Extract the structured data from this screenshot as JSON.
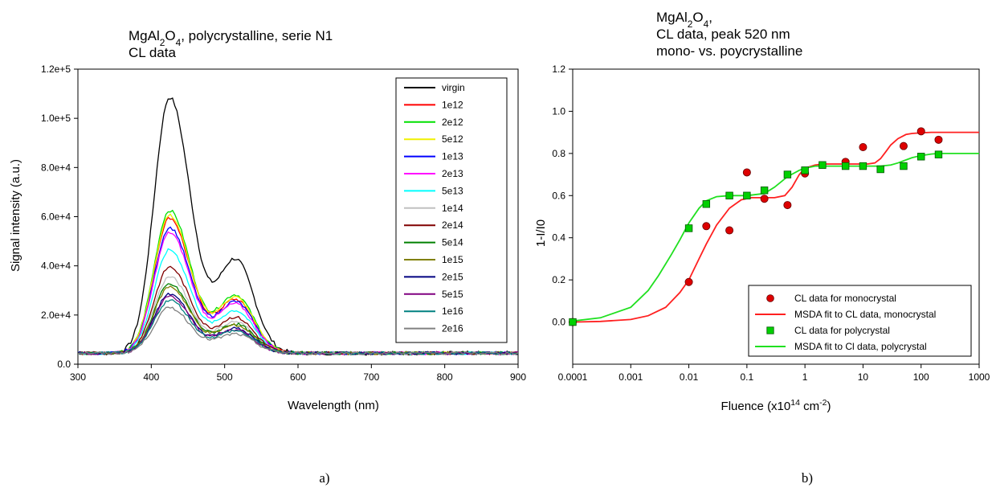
{
  "panels": {
    "left_label": "a)",
    "right_label": "b)"
  },
  "chart_data": [
    {
      "type": "line",
      "title_parts": [
        [
          {
            "t": "MgAl"
          },
          {
            "t": "2",
            "sub": true
          },
          {
            "t": "O"
          },
          {
            "t": "4",
            "sub": true
          },
          {
            "t": ", polycrystalline, serie N1"
          }
        ],
        [
          {
            "t": "CL data"
          }
        ]
      ],
      "xlabel": "Wavelength (nm)",
      "ylabel": "Signal intensity (a.u.)",
      "xlim": [
        300,
        900
      ],
      "ylim": [
        0,
        120000
      ],
      "xticks": [
        300,
        400,
        500,
        600,
        700,
        800,
        900
      ],
      "yticks": [
        0,
        20000,
        40000,
        60000,
        80000,
        100000,
        120000
      ],
      "ytick_labels": [
        "0.0",
        "2.0e+4",
        "4.0e+4",
        "6.0e+4",
        "8.0e+4",
        "1.0e+5",
        "1.2e+5"
      ],
      "grid": false,
      "legend_position": "top-right",
      "series": [
        {
          "name": "virgin",
          "color": "#000000",
          "peak": 104000,
          "shoulder": 42000
        },
        {
          "name": "1e12",
          "color": "#ff0000",
          "peak": 55000,
          "shoulder": 24000
        },
        {
          "name": "2e12",
          "color": "#00e000",
          "peak": 58000,
          "shoulder": 26000
        },
        {
          "name": "5e12",
          "color": "#f0f000",
          "peak": 56000,
          "shoulder": 25000
        },
        {
          "name": "1e13",
          "color": "#0000ff",
          "peak": 51000,
          "shoulder": 23000
        },
        {
          "name": "2e13",
          "color": "#ff00ff",
          "peak": 49000,
          "shoulder": 22000
        },
        {
          "name": "5e13",
          "color": "#00ffff",
          "peak": 42000,
          "shoulder": 19000
        },
        {
          "name": "1e14",
          "color": "#c0c0c0",
          "peak": 31000,
          "shoulder": 14000
        },
        {
          "name": "2e14",
          "color": "#800000",
          "peak": 35000,
          "shoulder": 16000
        },
        {
          "name": "5e14",
          "color": "#008000",
          "peak": 28000,
          "shoulder": 13000
        },
        {
          "name": "1e15",
          "color": "#808000",
          "peak": 27000,
          "shoulder": 12500
        },
        {
          "name": "2e15",
          "color": "#000080",
          "peak": 24000,
          "shoulder": 11000
        },
        {
          "name": "5e15",
          "color": "#800080",
          "peak": 23000,
          "shoulder": 10500
        },
        {
          "name": "1e16",
          "color": "#008080",
          "peak": 21500,
          "shoulder": 10000
        },
        {
          "name": "2e16",
          "color": "#808080",
          "peak": 18500,
          "shoulder": 8500
        }
      ]
    },
    {
      "type": "scatter",
      "title_parts": [
        [
          {
            "t": "MgAl"
          },
          {
            "t": "2",
            "sub": true
          },
          {
            "t": "O"
          },
          {
            "t": "4",
            "sub": true
          },
          {
            "t": ","
          }
        ],
        [
          {
            "t": "CL data, peak 520 nm"
          }
        ],
        [
          {
            "t": "mono- vs. poycrystalline"
          }
        ]
      ],
      "xlabel_parts": [
        {
          "t": "Fluence (x10"
        },
        {
          "t": "14",
          "sup": true
        },
        {
          "t": " cm"
        },
        {
          "t": "-2",
          "sup": true
        },
        {
          "t": ")"
        }
      ],
      "ylabel": "1-I/I0",
      "xscale": "log",
      "xlim": [
        0.0001,
        1000
      ],
      "ylim": [
        -0.2,
        1.2
      ],
      "xticks": [
        0.0001,
        0.001,
        0.01,
        0.1,
        1,
        10,
        100,
        1000
      ],
      "xtick_labels": [
        "0.0001",
        "0.001",
        "0.01",
        "0.1",
        "1",
        "10",
        "100",
        "1000"
      ],
      "yticks": [
        0.0,
        0.2,
        0.4,
        0.6,
        0.8,
        1.0,
        1.2
      ],
      "ytick_labels": [
        "0.0",
        "0.2",
        "0.4",
        "0.6",
        "0.8",
        "1.0",
        "1.2"
      ],
      "grid": false,
      "legend_position": "bottom-right",
      "series": [
        {
          "name": "CL data for monocrystal",
          "kind": "points",
          "marker": "circle",
          "color": "#dd0000",
          "x": [
            0.0001,
            0.01,
            0.02,
            0.05,
            0.1,
            0.2,
            0.5,
            1,
            5,
            10,
            50,
            100,
            200
          ],
          "y": [
            0.0,
            0.19,
            0.455,
            0.435,
            0.71,
            0.585,
            0.555,
            0.705,
            0.76,
            0.83,
            0.835,
            0.905,
            0.865
          ]
        },
        {
          "name": "MSDA fit to CL data, monocrystal",
          "kind": "line",
          "color": "#ff2020",
          "x": [
            0.0001,
            0.0003,
            0.001,
            0.002,
            0.004,
            0.007,
            0.01,
            0.015,
            0.02,
            0.03,
            0.05,
            0.08,
            0.12,
            0.2,
            0.3,
            0.45,
            0.6,
            0.8,
            1,
            1.5,
            2,
            3,
            5,
            8,
            12,
            16,
            20,
            25,
            30,
            40,
            55,
            70,
            100,
            150,
            200,
            300,
            1000
          ],
          "y": [
            0.0,
            0.003,
            0.012,
            0.03,
            0.07,
            0.14,
            0.2,
            0.3,
            0.37,
            0.46,
            0.54,
            0.58,
            0.59,
            0.59,
            0.59,
            0.6,
            0.64,
            0.7,
            0.73,
            0.745,
            0.75,
            0.75,
            0.75,
            0.75,
            0.75,
            0.755,
            0.775,
            0.81,
            0.84,
            0.87,
            0.89,
            0.895,
            0.898,
            0.9,
            0.9,
            0.9,
            0.9
          ]
        },
        {
          "name": "CL data for polycrystal",
          "kind": "points",
          "marker": "square",
          "color": "#00d000",
          "x": [
            0.0001,
            0.01,
            0.02,
            0.05,
            0.1,
            0.2,
            0.5,
            1,
            2,
            5,
            10,
            20,
            50,
            100,
            200
          ],
          "y": [
            0.0,
            0.445,
            0.56,
            0.6,
            0.6,
            0.625,
            0.7,
            0.72,
            0.745,
            0.74,
            0.74,
            0.725,
            0.74,
            0.785,
            0.795
          ]
        },
        {
          "name": "MSDA fit to Cl data, polycrystal",
          "kind": "line",
          "color": "#20e020",
          "x": [
            0.0001,
            0.0003,
            0.001,
            0.002,
            0.003,
            0.005,
            0.007,
            0.01,
            0.015,
            0.02,
            0.03,
            0.05,
            0.1,
            0.2,
            0.3,
            0.5,
            0.8,
            1,
            1.5,
            2,
            5,
            10,
            20,
            30,
            40,
            50,
            70,
            100,
            150,
            200,
            500,
            1000
          ],
          "y": [
            0.005,
            0.02,
            0.07,
            0.15,
            0.22,
            0.32,
            0.39,
            0.47,
            0.54,
            0.575,
            0.595,
            0.6,
            0.6,
            0.61,
            0.64,
            0.69,
            0.72,
            0.73,
            0.74,
            0.74,
            0.74,
            0.74,
            0.74,
            0.745,
            0.755,
            0.765,
            0.78,
            0.79,
            0.797,
            0.8,
            0.8,
            0.8
          ]
        }
      ]
    }
  ]
}
